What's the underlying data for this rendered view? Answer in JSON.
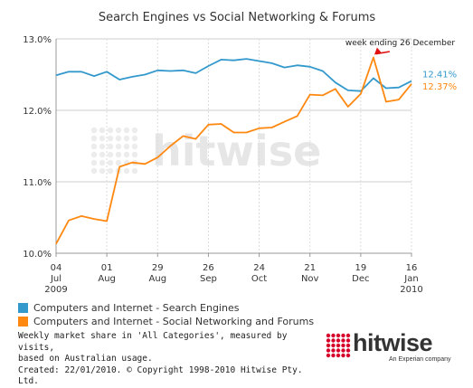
{
  "chart_data": {
    "type": "line",
    "title": "Search Engines vs Social Networking & Forums",
    "xlabel": "",
    "ylabel": "",
    "ylim": [
      10.0,
      13.0
    ],
    "y_ticks": [
      "10.0%",
      "11.0%",
      "12.0%",
      "13.0%"
    ],
    "x_ticks": [
      {
        "day": "04",
        "month": "Jul",
        "year": "2009"
      },
      {
        "day": "01",
        "month": "Aug",
        "year": ""
      },
      {
        "day": "29",
        "month": "Aug",
        "year": ""
      },
      {
        "day": "26",
        "month": "Sep",
        "year": ""
      },
      {
        "day": "24",
        "month": "Oct",
        "year": ""
      },
      {
        "day": "21",
        "month": "Nov",
        "year": ""
      },
      {
        "day": "19",
        "month": "Dec",
        "year": ""
      },
      {
        "day": "16",
        "month": "Jan",
        "year": "2010"
      }
    ],
    "x_tick_weeks": [
      0,
      4,
      8,
      12,
      16,
      20,
      24,
      28
    ],
    "grid": true,
    "legend_position": "bottom",
    "series": [
      {
        "name": "Computers and Internet - Search Engines",
        "color": "#3399cc",
        "values": [
          12.49,
          12.54,
          12.54,
          12.48,
          12.54,
          12.43,
          12.47,
          12.5,
          12.56,
          12.55,
          12.56,
          12.52,
          12.62,
          12.71,
          12.7,
          12.72,
          12.69,
          12.66,
          12.6,
          12.63,
          12.61,
          12.55,
          12.39,
          12.28,
          12.27,
          12.45,
          12.31,
          12.32,
          12.41
        ],
        "end_label": "12.41%"
      },
      {
        "name": "Computers and Internet - Social Networking and Forums",
        "color": "#ff8811",
        "values": [
          10.13,
          10.46,
          10.52,
          10.48,
          10.45,
          11.21,
          11.27,
          11.25,
          11.34,
          11.5,
          11.64,
          11.6,
          11.8,
          11.81,
          11.69,
          11.69,
          11.75,
          11.76,
          11.84,
          11.92,
          12.22,
          12.21,
          12.3,
          12.05,
          12.23,
          12.74,
          12.12,
          12.15,
          12.37
        ],
        "end_label": "12.37%"
      }
    ],
    "annotations": [
      {
        "text": "week ending 26 December",
        "series": 1,
        "week": 25
      }
    ]
  },
  "legend": {
    "items": [
      {
        "label": "Computers and Internet - Search Engines",
        "color": "#3399cc"
      },
      {
        "label": "Computers and Internet - Social Networking and Forums",
        "color": "#ff8811"
      }
    ]
  },
  "footer": {
    "line1": "Weekly market share in 'All Categories', measured by visits,",
    "line2": "based on Australian usage.",
    "line3": "Created: 22/01/2010. © Copyright 1998-2010 Hitwise Pty. Ltd."
  },
  "watermark": {
    "text": "hitwise"
  },
  "logo": {
    "name": "hitwise",
    "tagline": "An Experian company",
    "dot_color": "#d6002a"
  }
}
